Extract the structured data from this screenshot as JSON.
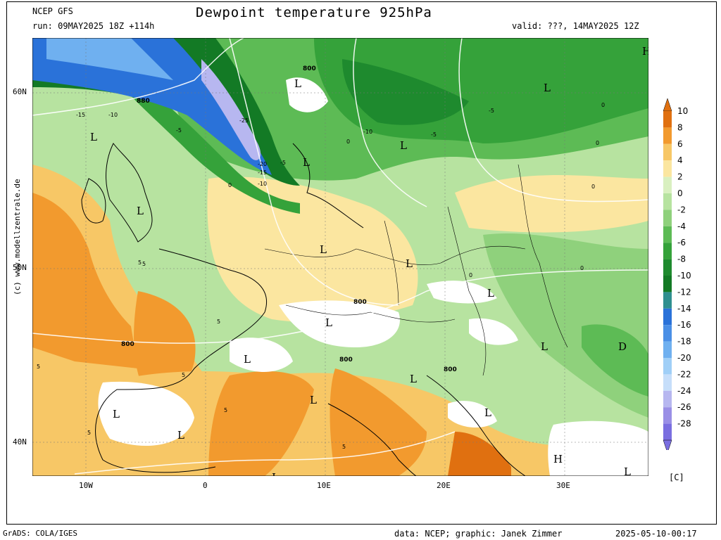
{
  "header": {
    "model": "NCEP GFS",
    "run": "run: 09MAY2025 18Z +114h",
    "title": "Dewpoint temperature 925hPa",
    "valid": "valid: ???, 14MAY2025 12Z"
  },
  "footer": {
    "left": "GrADS: COLA/IGES",
    "data": "data: NCEP; graphic: Janek Zimmer",
    "timestamp": "2025-05-10-00:17"
  },
  "side_credit": "(c) www.modellzentrale.de",
  "axes": {
    "lat_labels": [
      "60N",
      "50N",
      "40N"
    ],
    "lon_labels": [
      "10W",
      "0",
      "10E",
      "20E",
      "30E"
    ]
  },
  "colorbar": {
    "unit": "[C]",
    "labels": [
      "10",
      "8",
      "6",
      "4",
      "2",
      "0",
      "-2",
      "-4",
      "-6",
      "-8",
      "-10",
      "-12",
      "-14",
      "-16",
      "-18",
      "-20",
      "-22",
      "-24",
      "-26",
      "-28"
    ],
    "colors": [
      "#e07010",
      "#f29a2e",
      "#f7c766",
      "#fbe6a0",
      "#d9f0c0",
      "#b7e3a0",
      "#8fd17c",
      "#5dbb55",
      "#35a23a",
      "#1e8a2e",
      "#137a25",
      "#2f8f8f",
      "#2a72d9",
      "#4a8fe6",
      "#6fb0f0",
      "#a0cff7",
      "#c6defa",
      "#b7b7f0",
      "#9a8fe6",
      "#7a6ee0"
    ]
  },
  "map_labels": {
    "pressure_systems": [
      "L",
      "L",
      "L",
      "L",
      "L",
      "L",
      "L",
      "L",
      "L",
      "L",
      "L",
      "L",
      "L",
      "L",
      "L",
      "L",
      "L",
      "L",
      "L",
      "H",
      "H",
      "D"
    ],
    "geopotential": [
      "880",
      "800",
      "800",
      "800",
      "800",
      "800"
    ],
    "isotherms": [
      "-15",
      "-10",
      "-5",
      "-25",
      "-20",
      "-15",
      "-10",
      "-5",
      "-10",
      "-5",
      "-5",
      "0",
      "0",
      "0",
      "0",
      "0",
      "0",
      "0",
      "5",
      "5",
      "5",
      "5",
      "5",
      "5",
      "5",
      "5"
    ]
  }
}
